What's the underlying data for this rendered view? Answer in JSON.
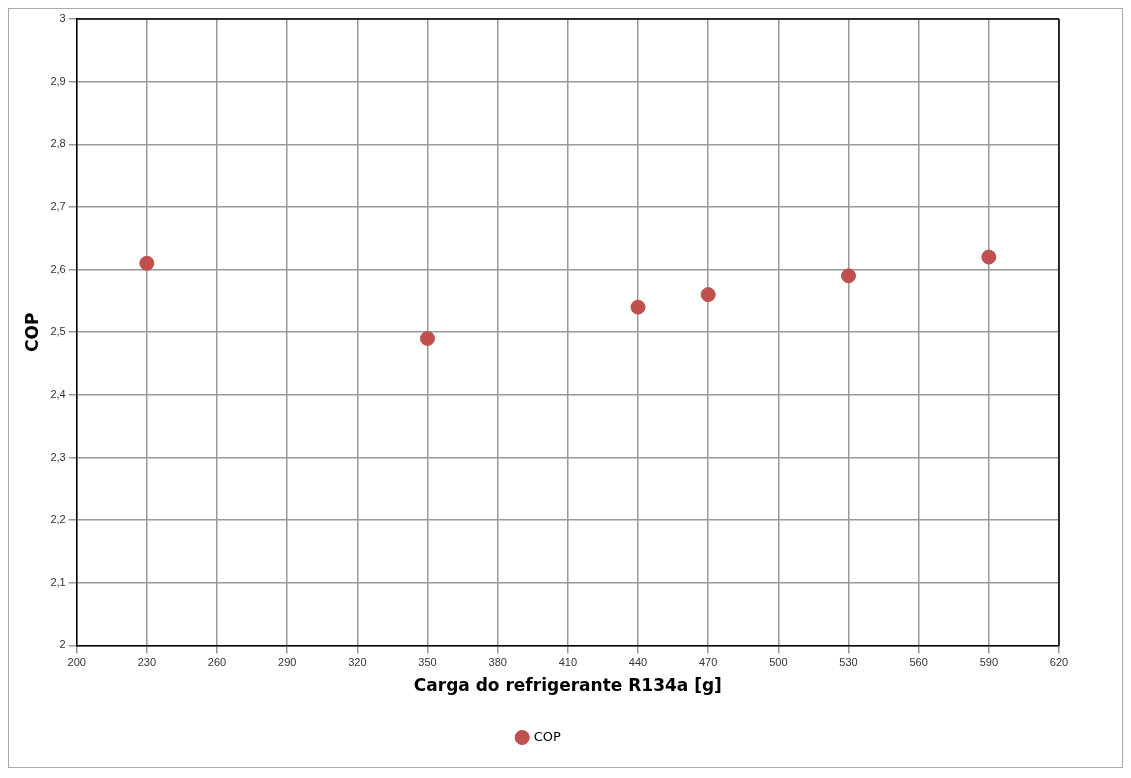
{
  "chart_data": {
    "type": "scatter",
    "xlabel": "Carga do refrigerante R134a [g]",
    "ylabel": "COP",
    "x": [
      230,
      350,
      440,
      470,
      530,
      590
    ],
    "series": [
      {
        "name": "COP",
        "color": "#c0504d",
        "values": [
          2.61,
          2.49,
          2.54,
          2.56,
          2.59,
          2.62
        ]
      }
    ],
    "xlim": [
      200,
      620
    ],
    "xticks": [
      200,
      230,
      260,
      290,
      320,
      350,
      380,
      410,
      440,
      470,
      500,
      530,
      560,
      590,
      620
    ],
    "ylim": [
      2,
      3
    ],
    "yticks": [
      2,
      {
        "value": 2.1,
        "label": "2,1"
      },
      {
        "value": 2.2,
        "label": "2,2"
      },
      {
        "value": 2.3,
        "label": "2,3"
      },
      {
        "value": 2.4,
        "label": "2,4"
      },
      {
        "value": 2.5,
        "label": "2,5"
      },
      {
        "value": 2.6,
        "label": "2,6"
      },
      {
        "value": 2.7,
        "label": "2,7"
      },
      {
        "value": 2.8,
        "label": "2,8"
      },
      {
        "value": 2.9,
        "label": "2,9"
      },
      3
    ],
    "grid": true,
    "legend": "bottom",
    "marker": "circle"
  }
}
